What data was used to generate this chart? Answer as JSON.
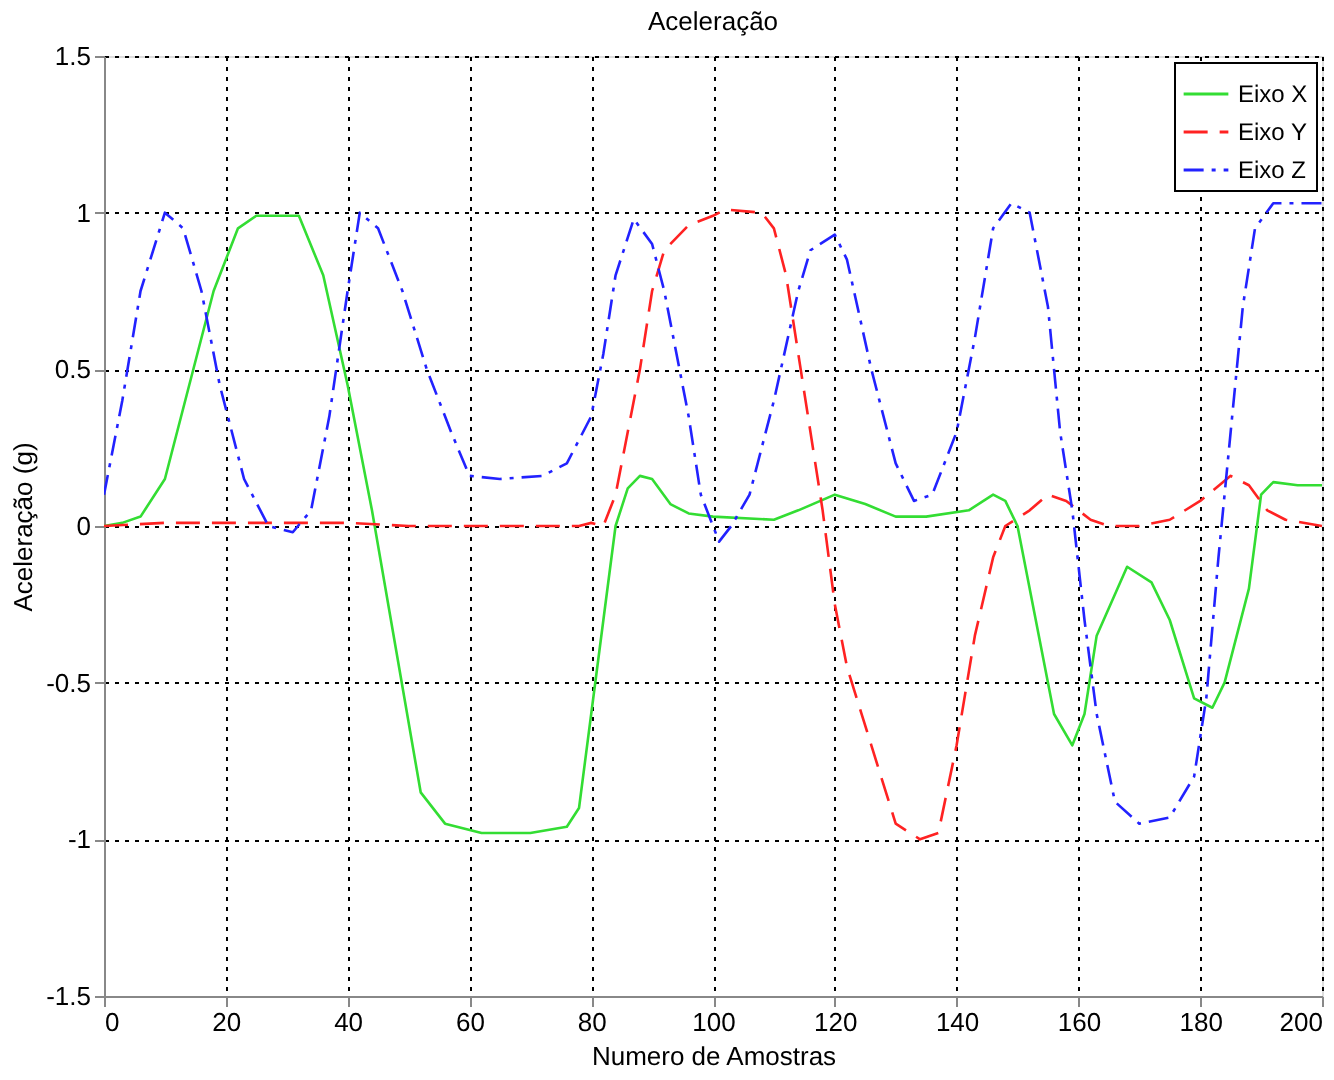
{
  "chart_data": {
    "type": "line",
    "title": "Aceleração",
    "xlabel": "Numero de Amostras",
    "ylabel": "Aceleração (g)",
    "xlim": [
      0,
      200
    ],
    "xticks": [
      0,
      20,
      40,
      60,
      80,
      100,
      120,
      140,
      160,
      180,
      200
    ],
    "ylim": [
      -1.5,
      1.5
    ],
    "yticks": [
      -1.5,
      -1,
      -0.5,
      0,
      0.5,
      1,
      1.5
    ],
    "grid": true,
    "legend": "top right",
    "marker": "none",
    "series": [
      {
        "name": "Eixo X",
        "color": "#33dd33",
        "line_style": "solid",
        "x": [
          0,
          3,
          6,
          10,
          14,
          18,
          22,
          25,
          32,
          36,
          40,
          44,
          48,
          52,
          56,
          62,
          70,
          76,
          78,
          80,
          82,
          84,
          86,
          88,
          90,
          93,
          96,
          100,
          110,
          114,
          120,
          125,
          130,
          135,
          142,
          146,
          148,
          150,
          153,
          156,
          159,
          161,
          163,
          168,
          172,
          175,
          179,
          182,
          184,
          188,
          190,
          192,
          196,
          200
        ],
        "values": [
          0,
          0.01,
          0.03,
          0.15,
          0.45,
          0.75,
          0.95,
          0.99,
          0.99,
          0.8,
          0.45,
          0.05,
          -0.4,
          -0.85,
          -0.95,
          -0.98,
          -0.98,
          -0.96,
          -0.9,
          -0.6,
          -0.3,
          0,
          0.12,
          0.16,
          0.15,
          0.07,
          0.04,
          0.03,
          0.02,
          0.05,
          0.1,
          0.07,
          0.03,
          0.03,
          0.05,
          0.1,
          0.08,
          0,
          -0.3,
          -0.6,
          -0.7,
          -0.6,
          -0.35,
          -0.13,
          -0.18,
          -0.3,
          -0.55,
          -0.58,
          -0.5,
          -0.2,
          0.1,
          0.14,
          0.13,
          0.13
        ]
      },
      {
        "name": "Eixo Y",
        "color": "#ff2222",
        "line_style": "dashed",
        "x": [
          0,
          10,
          20,
          30,
          40,
          50,
          60,
          70,
          78,
          80,
          82,
          84,
          86,
          88,
          90,
          92,
          96,
          100,
          102,
          108,
          110,
          112,
          114,
          116,
          118,
          120,
          122,
          126,
          130,
          134,
          137,
          140,
          143,
          146,
          148,
          152,
          155,
          158,
          162,
          165,
          170,
          175,
          180,
          185,
          188,
          191,
          194,
          200
        ],
        "values": [
          0,
          0.01,
          0.01,
          0.01,
          0.01,
          0,
          0,
          0,
          0,
          0.01,
          0,
          0.1,
          0.3,
          0.5,
          0.75,
          0.88,
          0.96,
          0.99,
          1.01,
          1,
          0.95,
          0.8,
          0.55,
          0.3,
          0.05,
          -0.25,
          -0.45,
          -0.7,
          -0.95,
          -1,
          -0.98,
          -0.7,
          -0.35,
          -0.1,
          0,
          0.05,
          0.1,
          0.08,
          0.02,
          0,
          0,
          0.02,
          0.08,
          0.16,
          0.13,
          0.05,
          0.02,
          0
        ]
      },
      {
        "name": "Eixo Z",
        "color": "#2222ff",
        "line_style": "dashdot",
        "x": [
          0,
          3,
          6,
          10,
          13,
          16,
          19,
          23,
          27,
          31,
          34,
          37,
          40,
          42,
          45,
          49,
          53,
          57,
          60,
          65,
          72,
          76,
          80,
          82,
          84,
          87,
          90,
          92,
          96,
          98,
          101,
          103,
          106,
          110,
          114,
          116,
          120,
          122,
          126,
          130,
          133,
          136,
          140,
          143,
          146,
          149,
          152,
          155,
          157,
          159,
          161,
          163,
          166,
          170,
          175,
          179,
          181,
          183,
          185,
          187,
          189,
          192,
          200
        ],
        "values": [
          0.1,
          0.4,
          0.75,
          1,
          0.95,
          0.75,
          0.45,
          0.15,
          0,
          -0.02,
          0.05,
          0.35,
          0.75,
          1,
          0.95,
          0.75,
          0.5,
          0.3,
          0.16,
          0.15,
          0.16,
          0.2,
          0.35,
          0.55,
          0.8,
          0.98,
          0.9,
          0.75,
          0.35,
          0.1,
          -0.05,
          0,
          0.1,
          0.4,
          0.75,
          0.88,
          0.93,
          0.85,
          0.5,
          0.2,
          0.08,
          0.1,
          0.3,
          0.6,
          0.95,
          1.03,
          1,
          0.7,
          0.3,
          0.05,
          -0.3,
          -0.6,
          -0.88,
          -0.95,
          -0.93,
          -0.8,
          -0.55,
          -0.1,
          0.3,
          0.7,
          0.95,
          1.03,
          1.03
        ]
      }
    ]
  }
}
